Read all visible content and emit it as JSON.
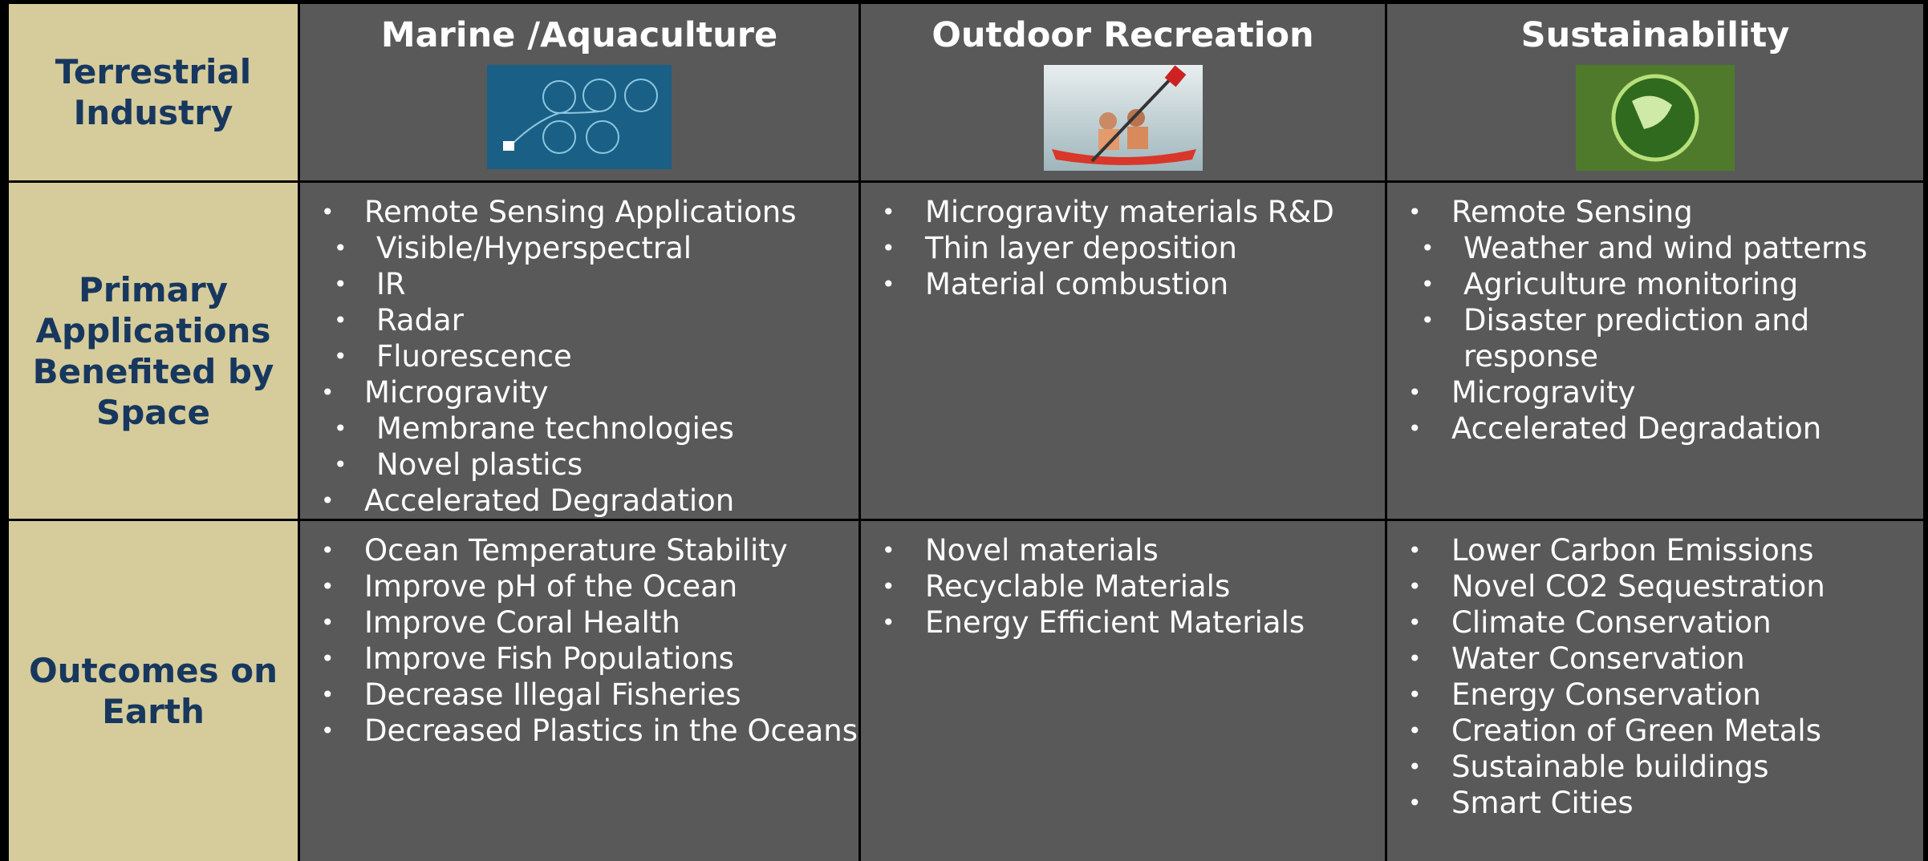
{
  "header": {
    "corner": "Terrestrial Industry",
    "columns": [
      {
        "title": "Marine /Aquaculture"
      },
      {
        "title": "Outdoor Recreation"
      },
      {
        "title": "Sustainability"
      }
    ]
  },
  "rows": [
    {
      "label": "Primary Applications Benefited by Space",
      "cells": [
        {
          "items": [
            {
              "text": "Remote Sensing Applications",
              "sub": [
                "Visible/Hyperspectral",
                "IR",
                "Radar",
                "Fluorescence"
              ]
            },
            {
              "text": "Microgravity",
              "sub": [
                "Membrane technologies",
                "Novel plastics"
              ]
            },
            {
              "text": "Accelerated Degradation"
            }
          ]
        },
        {
          "items": [
            {
              "text": "Microgravity materials R&D"
            },
            {
              "text": "Thin layer deposition"
            },
            {
              "text": "Material combustion"
            }
          ]
        },
        {
          "items": [
            {
              "text": "Remote Sensing",
              "sub": [
                "Weather and wind patterns",
                "Agriculture monitoring",
                "Disaster prediction and response"
              ]
            },
            {
              "text": "Microgravity"
            },
            {
              "text": "Accelerated Degradation"
            }
          ]
        }
      ]
    },
    {
      "label": "Outcomes on Earth",
      "cells": [
        {
          "items": [
            {
              "text": "Ocean Temperature Stability"
            },
            {
              "text": "Improve pH of the Ocean"
            },
            {
              "text": "Improve Coral Health"
            },
            {
              "text": "Improve Fish Populations"
            },
            {
              "text": "Decrease Illegal Fisheries"
            },
            {
              "text": "Decreased Plastics in the Oceans"
            }
          ]
        },
        {
          "items": [
            {
              "text": "Novel materials"
            },
            {
              "text": "Recyclable Materials"
            },
            {
              "text": "Energy Efficient Materials"
            }
          ]
        },
        {
          "items": [
            {
              "text": "Lower Carbon Emissions"
            },
            {
              "text": "Novel CO2 Sequestration"
            },
            {
              "text": "Climate Conservation"
            },
            {
              "text": "Water Conservation"
            },
            {
              "text": "Energy Conservation"
            },
            {
              "text": "Creation of Green Metals"
            },
            {
              "text": "Sustainable buildings"
            },
            {
              "text": "Smart Cities"
            }
          ]
        }
      ]
    }
  ]
}
